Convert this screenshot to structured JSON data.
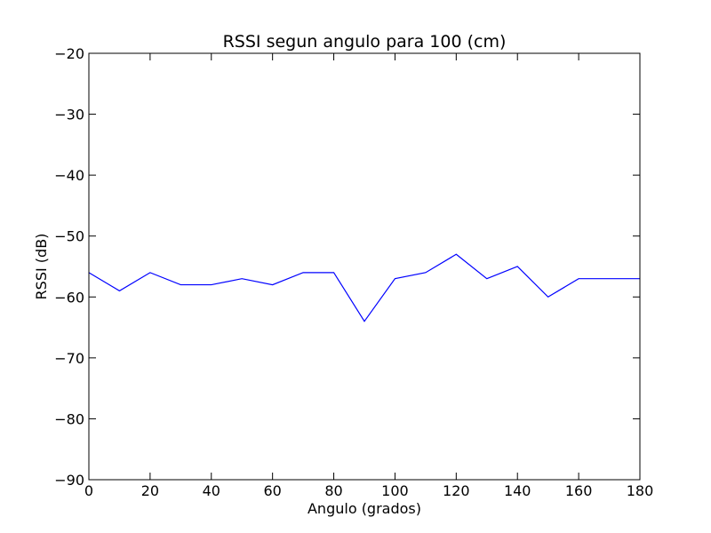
{
  "chart_data": {
    "type": "line",
    "title": "RSSI segun angulo para 100 (cm)",
    "xlabel": "Angulo (grados)",
    "ylabel": "RSSI (dB)",
    "xlim": [
      0,
      180
    ],
    "ylim": [
      -90,
      -20
    ],
    "xticks": [
      0,
      20,
      40,
      60,
      80,
      100,
      120,
      140,
      160,
      180
    ],
    "yticks": [
      -90,
      -80,
      -70,
      -60,
      -50,
      -40,
      -30,
      -20
    ],
    "xtick_labels": [
      "0",
      "20",
      "40",
      "60",
      "80",
      "100",
      "120",
      "140",
      "160",
      "180"
    ],
    "ytick_labels": [
      "−90",
      "−80",
      "−70",
      "−60",
      "−50",
      "−40",
      "−30",
      "−20"
    ],
    "grid": false,
    "series": [
      {
        "color": "#0000ff",
        "x": [
          0,
          10,
          20,
          30,
          40,
          50,
          60,
          70,
          80,
          90,
          100,
          110,
          120,
          130,
          140,
          150,
          160,
          170,
          180
        ],
        "y": [
          -56,
          -59,
          -56,
          -58,
          -58,
          -57,
          -58,
          -56,
          -56,
          -64,
          -57,
          -56,
          -53,
          -57,
          -55,
          -60,
          -57,
          -57,
          -57
        ]
      }
    ]
  }
}
